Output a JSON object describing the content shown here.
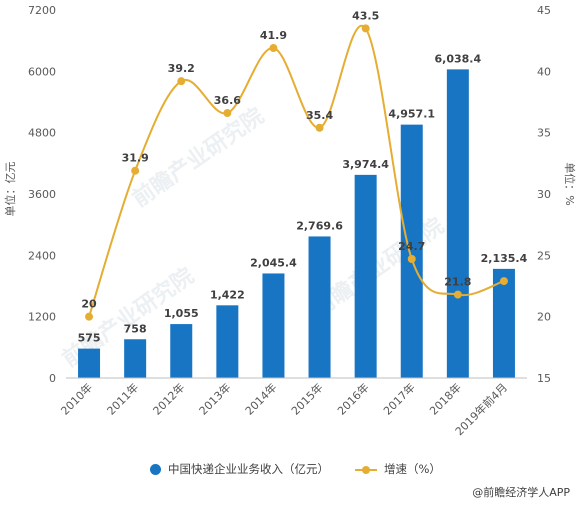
{
  "chart_data": {
    "type": "bar+line",
    "categories": [
      "2010年",
      "2011年",
      "2012年",
      "2013年",
      "2014年",
      "2015年",
      "2016年",
      "2017年",
      "2018年",
      "2019年前4月"
    ],
    "series": [
      {
        "name": "中国快递企业业务收入（亿元）",
        "type": "bar",
        "axis": "left",
        "values": [
          575,
          758,
          1055,
          1422,
          2045.4,
          2769.6,
          3974.4,
          4957.1,
          6038.4,
          2135.4
        ],
        "labels": [
          "575",
          "758",
          "1,055",
          "1,422",
          "2,045.4",
          "2,769.6",
          "3,974.4",
          "4,957.1",
          "6,038.4",
          "2,135.4"
        ],
        "color": "#1875c4"
      },
      {
        "name": "增速（%）",
        "type": "line",
        "axis": "right",
        "smooth": true,
        "values": [
          20,
          31.9,
          39.2,
          36.6,
          41.9,
          35.4,
          43.5,
          24.7,
          21.8,
          22.9
        ],
        "labels": [
          "20",
          "31.9",
          "39.2",
          "36.6",
          "41.9",
          "35.4",
          "43.5",
          "24.7",
          "21.8",
          ""
        ],
        "color": "#e5ad31"
      }
    ],
    "y_left": {
      "label": "单位：亿元",
      "ylim": [
        0,
        7200
      ],
      "ticks": [
        "0",
        "1200",
        "2400",
        "3600",
        "4800",
        "6000",
        "7200"
      ]
    },
    "y_right": {
      "label": "单位：%",
      "ylim": [
        15,
        45
      ],
      "ticks": [
        "15",
        "20",
        "25",
        "30",
        "35",
        "40",
        "45"
      ]
    },
    "grid": false,
    "legend_position": "bottom"
  },
  "legend": {
    "bar_label": "中国快递企业业务收入（亿元）",
    "line_label": "增速（%）"
  },
  "source": "@前瞻经济学人APP",
  "watermark_text": "前瞻产业研究院"
}
